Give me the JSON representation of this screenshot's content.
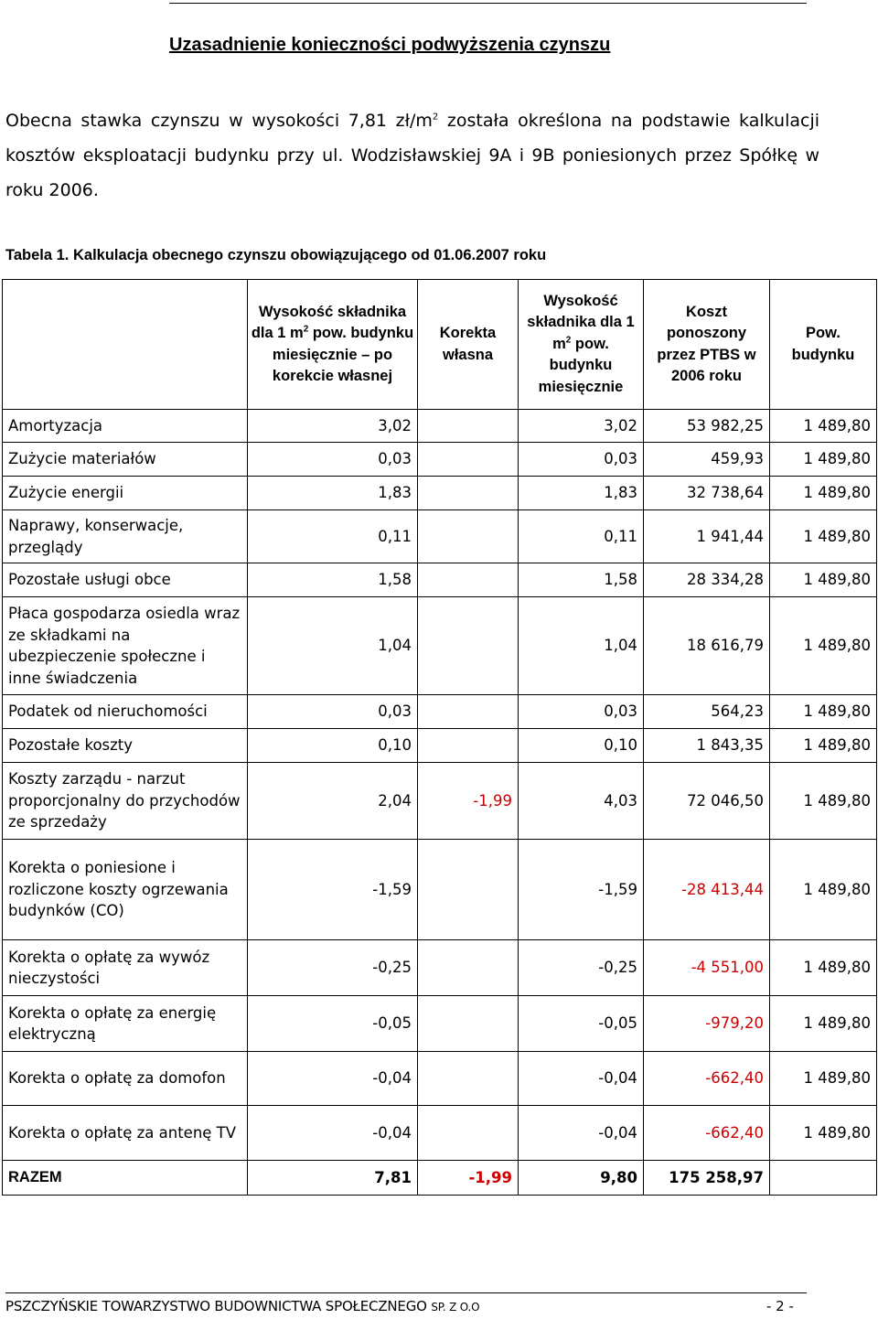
{
  "document": {
    "title": "Uzasadnienie konieczności podwyższenia czynszu",
    "intro_part1": "Obecna stawka czynszu w wysokości 7,81 zł/m",
    "intro_sup": "2",
    "intro_part2": " została określona na podstawie kalkulacji kosztów eksploatacji budynku przy ul. Wodzisławskiej 9A i 9B poniesionych przez Spółkę w roku 2006.",
    "table_caption": "Tabela 1. Kalkulacja obecnego czynszu obowiązującego od 01.06.2007 roku"
  },
  "table": {
    "headers": {
      "col1_a": "Wysokość składnika dla 1 m",
      "col1_sup": "2",
      "col1_b": " pow. budynku miesięcznie – po korekcie własnej",
      "col2": "Korekta własna",
      "col3_a": "Wysokość składnika dla 1 m",
      "col3_sup": "2",
      "col3_b": " pow. budynku miesięcznie",
      "col4": "Koszt ponoszony przez PTBS w 2006 roku",
      "col5": "Pow. budynku"
    },
    "rows": [
      {
        "label": "Amortyzacja",
        "after_correction": "3,02",
        "correction": "",
        "per_m2": "3,02",
        "cost": "53 982,25",
        "area": "1 489,80"
      },
      {
        "label": "Zużycie materiałów",
        "after_correction": "0,03",
        "correction": "",
        "per_m2": "0,03",
        "cost": "459,93",
        "area": "1 489,80"
      },
      {
        "label": "Zużycie energii",
        "after_correction": "1,83",
        "correction": "",
        "per_m2": "1,83",
        "cost": "32 738,64",
        "area": "1 489,80"
      },
      {
        "label": "Naprawy, konserwacje, przeglądy",
        "after_correction": "0,11",
        "correction": "",
        "per_m2": "0,11",
        "cost": "1 941,44",
        "area": "1 489,80"
      },
      {
        "label": "Pozostałe usługi obce",
        "after_correction": "1,58",
        "correction": "",
        "per_m2": "1,58",
        "cost": "28 334,28",
        "area": "1 489,80"
      },
      {
        "label": "Płaca gospodarza osiedla wraz ze składkami na ubezpieczenie społeczne i inne świadczenia",
        "after_correction": "1,04",
        "correction": "",
        "per_m2": "1,04",
        "cost": "18 616,79",
        "area": "1 489,80"
      },
      {
        "label": "Podatek od nieruchomości",
        "after_correction": "0,03",
        "correction": "",
        "per_m2": "0,03",
        "cost": "564,23",
        "area": "1 489,80"
      },
      {
        "label": "Pozostałe koszty",
        "after_correction": "0,10",
        "correction": "",
        "per_m2": "0,10",
        "cost": "1 843,35",
        "area": "1 489,80"
      },
      {
        "label": "Koszty zarządu - narzut proporcjonalny do przychodów ze sprzedaży",
        "after_correction": "2,04",
        "correction": "-1,99",
        "per_m2": "4,03",
        "cost": "72 046,50",
        "area": "1 489,80"
      },
      {
        "label": "Korekta o poniesione i rozliczone koszty ogrzewania budynków (CO)",
        "after_correction": "-1,59",
        "correction": "",
        "per_m2": "-1,59",
        "cost": "-28 413,44",
        "area": "1 489,80"
      },
      {
        "label": "Korekta o opłatę za wywóz nieczystości",
        "after_correction": "-0,25",
        "correction": "",
        "per_m2": "-0,25",
        "cost": "-4 551,00",
        "area": "1 489,80"
      },
      {
        "label": "Korekta o opłatę za energię elektryczną",
        "after_correction": "-0,05",
        "correction": "",
        "per_m2": "-0,05",
        "cost": "-979,20",
        "area": "1 489,80"
      },
      {
        "label": "Korekta o opłatę za domofon",
        "after_correction": "-0,04",
        "correction": "",
        "per_m2": "-0,04",
        "cost": "-662,40",
        "area": "1 489,80"
      },
      {
        "label": "Korekta o opłatę za antenę TV",
        "after_correction": "-0,04",
        "correction": "",
        "per_m2": "-0,04",
        "cost": "-662,40",
        "area": "1 489,80"
      }
    ],
    "total": {
      "label": "RAZEM",
      "after_correction": "7,81",
      "correction": "-1,99",
      "per_m2": "9,80",
      "cost": "175 258,97",
      "area": ""
    }
  },
  "footer": {
    "company_main": "PSZCZYŃSKIE TOWARZYSTWO BUDOWNICTWA SPOŁECZNEGO ",
    "company_small": "SP. Z O.O",
    "page_number": "- 2 -"
  },
  "colors": {
    "text": "#000000",
    "negative": "#cc0000"
  }
}
